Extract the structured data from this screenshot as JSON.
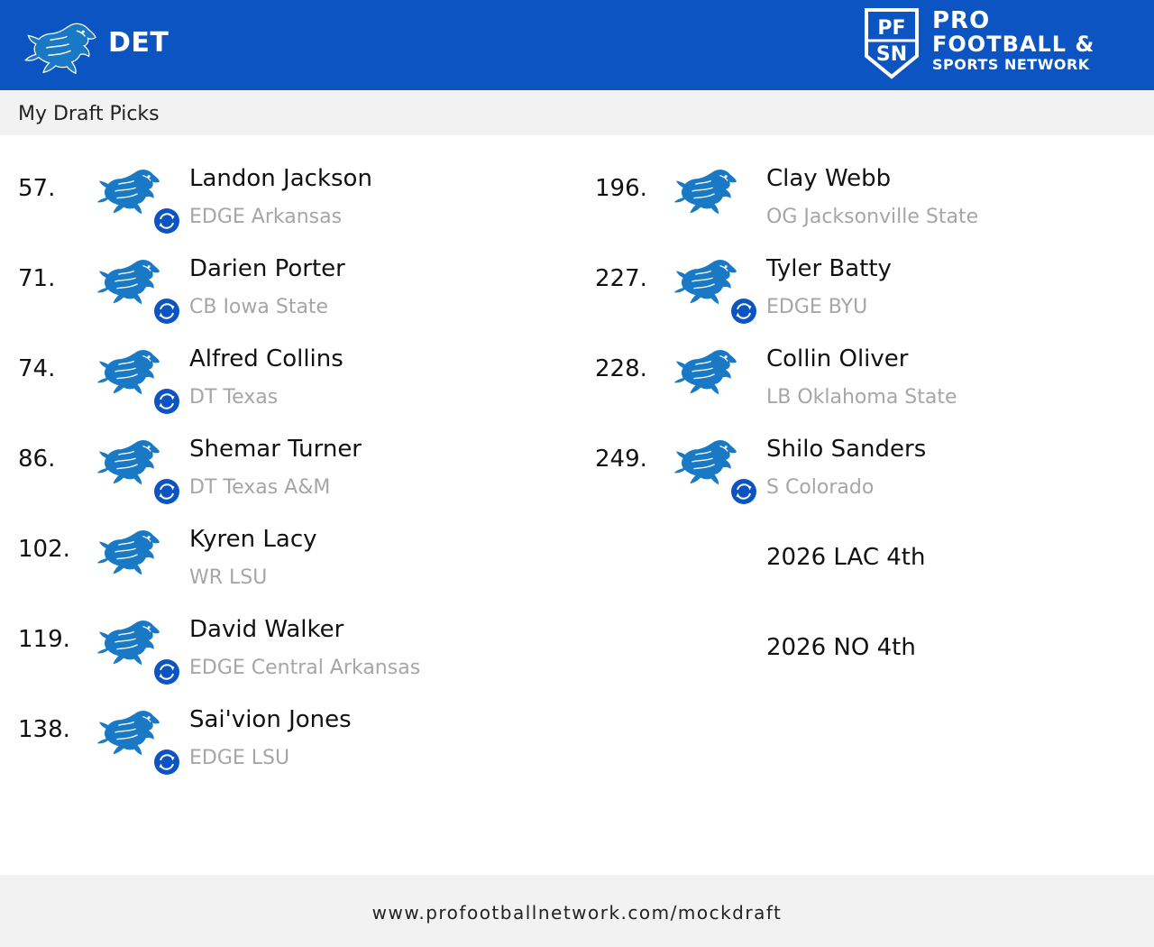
{
  "header": {
    "team_code": "DET",
    "team_logo_icon": "lions-logo-icon",
    "brand": {
      "shield_text": "PF SN",
      "line1": "PRO",
      "line2": "FOOTBALL &",
      "line3": "SPORTS NETWORK"
    },
    "colors": {
      "header_bg": "#0b54c2",
      "lions_blue": "#1a79c4"
    }
  },
  "subheader": {
    "title": "My Draft Picks"
  },
  "picks_left": [
    {
      "number": "57.",
      "name": "Landon Jackson",
      "info": "EDGE Arkansas",
      "traded": true
    },
    {
      "number": "71.",
      "name": "Darien Porter",
      "info": "CB Iowa State",
      "traded": true
    },
    {
      "number": "74.",
      "name": "Alfred Collins",
      "info": "DT Texas",
      "traded": true
    },
    {
      "number": "86.",
      "name": "Shemar Turner",
      "info": "DT Texas A&M",
      "traded": true
    },
    {
      "number": "102.",
      "name": "Kyren Lacy",
      "info": "WR LSU",
      "traded": false
    },
    {
      "number": "119.",
      "name": "David Walker",
      "info": "EDGE Central Arkansas",
      "traded": true
    },
    {
      "number": "138.",
      "name": "Sai'vion Jones",
      "info": "EDGE LSU",
      "traded": true
    }
  ],
  "picks_right": [
    {
      "number": "196.",
      "name": "Clay Webb",
      "info": "OG Jacksonville State",
      "traded": false
    },
    {
      "number": "227.",
      "name": "Tyler Batty",
      "info": "EDGE BYU",
      "traded": true
    },
    {
      "number": "228.",
      "name": "Collin Oliver",
      "info": "LB Oklahoma State",
      "traded": false
    },
    {
      "number": "249.",
      "name": "Shilo Sanders",
      "info": "S Colorado",
      "traded": true
    }
  ],
  "future_picks": [
    {
      "label": "2026 LAC 4th"
    },
    {
      "label": "2026 NO 4th"
    }
  ],
  "footer": {
    "url": "www.profootballnetwork.com/mockdraft"
  }
}
